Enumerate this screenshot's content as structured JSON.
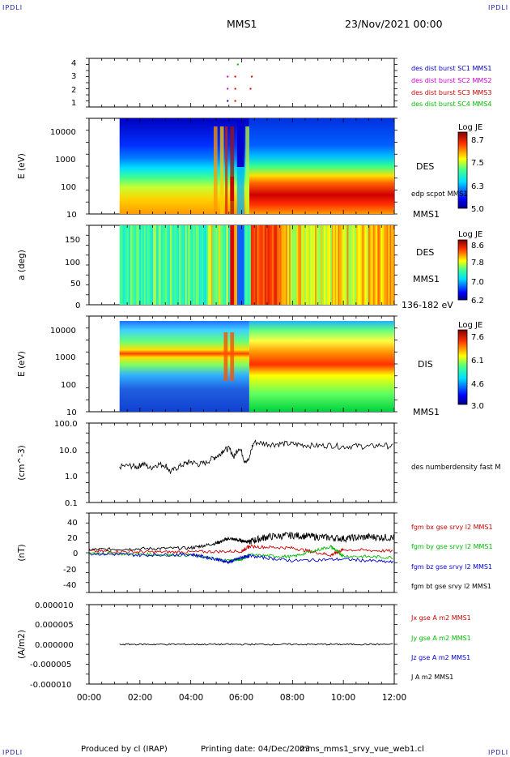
{
  "header": {
    "corner_label": "IPDLI",
    "spacecraft": "MMS1",
    "datetime": "23/Nov/2021 00:00"
  },
  "footer": {
    "produced_by": "Produced by cl (IRAP)",
    "printing_date": "Printing date: 04/Dec/2023",
    "file_name": "mms_mms1_srvy_vue_web1.cl"
  },
  "chart_data": [
    {
      "panel": "burst",
      "type": "scatter",
      "yticks": [
        "1",
        "2",
        "3",
        "4"
      ],
      "ylim": [
        0.5,
        4.5
      ],
      "legend": [
        {
          "text": "des dist burst SC1 MMS1",
          "color": "#0000cc"
        },
        {
          "text": "des dist burst SC2 MMS2",
          "color": "#cc00cc"
        },
        {
          "text": "des dist burst SC3 MMS3",
          "color": "#cc0000"
        },
        {
          "text": "des dist burst SC4 MMS4",
          "color": "#00bb00"
        }
      ],
      "points": [
        {
          "t": 5.85,
          "y": 4,
          "color": "#00bb00"
        },
        {
          "t": 5.45,
          "y": 3,
          "color": "#cc00cc"
        },
        {
          "t": 5.75,
          "y": 3,
          "color": "#cc0000"
        },
        {
          "t": 6.4,
          "y": 3,
          "color": "#cc0000"
        },
        {
          "t": 5.45,
          "y": 2,
          "color": "#cc00cc"
        },
        {
          "t": 5.75,
          "y": 2,
          "color": "#cc0000"
        },
        {
          "t": 6.35,
          "y": 2,
          "color": "#cc0000"
        },
        {
          "t": 5.45,
          "y": 1,
          "color": "#0000cc"
        },
        {
          "t": 5.75,
          "y": 1,
          "color": "#cc0000"
        }
      ]
    },
    {
      "panel": "des_energy",
      "type": "heatmap",
      "ylabel": "E (eV)",
      "yscale": "log",
      "ylim": [
        10,
        30000
      ],
      "yticks": [
        "10",
        "100",
        "1000",
        "10000"
      ],
      "species": "DES",
      "extra_label": "edp scpot MMS1",
      "sc_label": "MMS1",
      "colorbar": {
        "title": "Log JE",
        "ticks": [
          "8.7",
          "7.5",
          "6.3",
          "5.0"
        ]
      }
    },
    {
      "panel": "des_pitch",
      "type": "heatmap",
      "ylabel": "a (deg)",
      "ylim": [
        0,
        180
      ],
      "yticks": [
        "0",
        "50",
        "100",
        "150"
      ],
      "species": "DES",
      "sc_label": "MMS1",
      "energy_range": "136-182 eV",
      "colorbar": {
        "title": "Log JE",
        "ticks": [
          "8.6",
          "7.8",
          "7.0",
          "6.2"
        ]
      }
    },
    {
      "panel": "dis_energy",
      "type": "heatmap",
      "ylabel": "E (eV)",
      "yscale": "log",
      "ylim": [
        10,
        20000
      ],
      "yticks": [
        "10",
        "100",
        "1000",
        "10000"
      ],
      "species": "DIS",
      "sc_label": "MMS1",
      "colorbar": {
        "title": "Log JE",
        "ticks": [
          "7.6",
          "6.1",
          "4.6",
          "3.0"
        ]
      }
    },
    {
      "panel": "density",
      "type": "line",
      "ylabel": "(cm^-3)",
      "yscale": "log",
      "ylim": [
        0.1,
        100
      ],
      "yticks": [
        "0.1",
        "1.0",
        "10.0",
        "100.0"
      ],
      "legend": [
        {
          "text": "des numberdensity fast M",
          "color": "#000000"
        }
      ],
      "series": [
        {
          "x": [
            1.2,
            1.6,
            1.9,
            2.1,
            2.4,
            2.7,
            3.0,
            3.2,
            3.5,
            3.8,
            4.0,
            4.3,
            4.6,
            4.9,
            5.1,
            5.3,
            5.5,
            5.7,
            5.9,
            6.1,
            6.3,
            6.5,
            6.9,
            7.3,
            7.7,
            8.1,
            8.5,
            9.0,
            9.5,
            10.0,
            10.5,
            11.0,
            11.5,
            12.0
          ],
          "y": [
            2.3,
            2.5,
            2.2,
            3.0,
            2.0,
            2.8,
            2.6,
            1.4,
            2.2,
            3.0,
            3.5,
            2.8,
            3.2,
            5.0,
            6.0,
            10,
            11,
            5.0,
            12,
            4.0,
            4.0,
            19,
            17,
            16,
            17,
            16,
            15,
            14,
            15,
            13,
            14,
            13,
            15,
            13
          ]
        }
      ]
    },
    {
      "panel": "fgm",
      "type": "line",
      "ylabel": "(nT)",
      "ylim": [
        -50,
        50
      ],
      "yticks": [
        "-40",
        "-20",
        "0",
        "20",
        "40"
      ],
      "legend": [
        {
          "text": "fgm bx gse srvy l2 MMS1",
          "color": "#cc0000"
        },
        {
          "text": "fgm by gse srvy l2 MMS1",
          "color": "#00bb00"
        },
        {
          "text": "fgm bz gse srvy l2 MMS1",
          "color": "#0000cc"
        },
        {
          "text": "fgm bt gse srvy l2 MMS1",
          "color": "#000000"
        }
      ],
      "series": [
        {
          "name": "bt",
          "x": [
            0,
            2,
            4,
            5,
            5.5,
            6,
            6.3,
            7,
            8,
            9,
            10,
            11,
            12
          ],
          "y": [
            4,
            5,
            6,
            12,
            18,
            15,
            14,
            20,
            22,
            20,
            18,
            20,
            19
          ]
        },
        {
          "name": "bx",
          "x": [
            0,
            2,
            4,
            6,
            6.3,
            8,
            9.5,
            10,
            12
          ],
          "y": [
            2,
            1,
            1,
            2,
            8,
            6,
            -3,
            4,
            2
          ]
        },
        {
          "name": "by",
          "x": [
            0,
            2,
            4,
            5.5,
            6,
            6.3,
            8,
            9.5,
            10,
            12
          ],
          "y": [
            0,
            -2,
            -3,
            -10,
            -8,
            -3,
            -5,
            8,
            -4,
            -6
          ]
        },
        {
          "name": "bz",
          "x": [
            0,
            2,
            4,
            5,
            5.5,
            6,
            6.3,
            8,
            10,
            12
          ],
          "y": [
            -1,
            -3,
            -2,
            -8,
            -12,
            -6,
            -4,
            -10,
            -8,
            -12
          ]
        }
      ]
    },
    {
      "panel": "current",
      "type": "line",
      "ylabel": "(A/m2)",
      "ylim": [
        -1e-05,
        1e-05
      ],
      "yticks": [
        "-0.000010",
        "-0.000005",
        "0.000000",
        "0.000005",
        "0.000010"
      ],
      "legend": [
        {
          "text": "Jx gse A m2 MMS1",
          "color": "#cc0000"
        },
        {
          "text": "Jy gse A m2 MMS1",
          "color": "#00bb00"
        },
        {
          "text": "Jz gse A m2 MMS1",
          "color": "#0000cc"
        },
        {
          "text": "J A m2 MMS1",
          "color": "#000000"
        }
      ],
      "series": [
        {
          "name": "J",
          "x": [
            0,
            12
          ],
          "y": [
            0,
            0
          ]
        }
      ]
    },
    {
      "panel": "time_axis",
      "type": "axis",
      "xlim": [
        0,
        12
      ],
      "xticks": [
        "00:00",
        "02:00",
        "04:00",
        "06:00",
        "08:00",
        "10:00",
        "12:00"
      ]
    }
  ]
}
